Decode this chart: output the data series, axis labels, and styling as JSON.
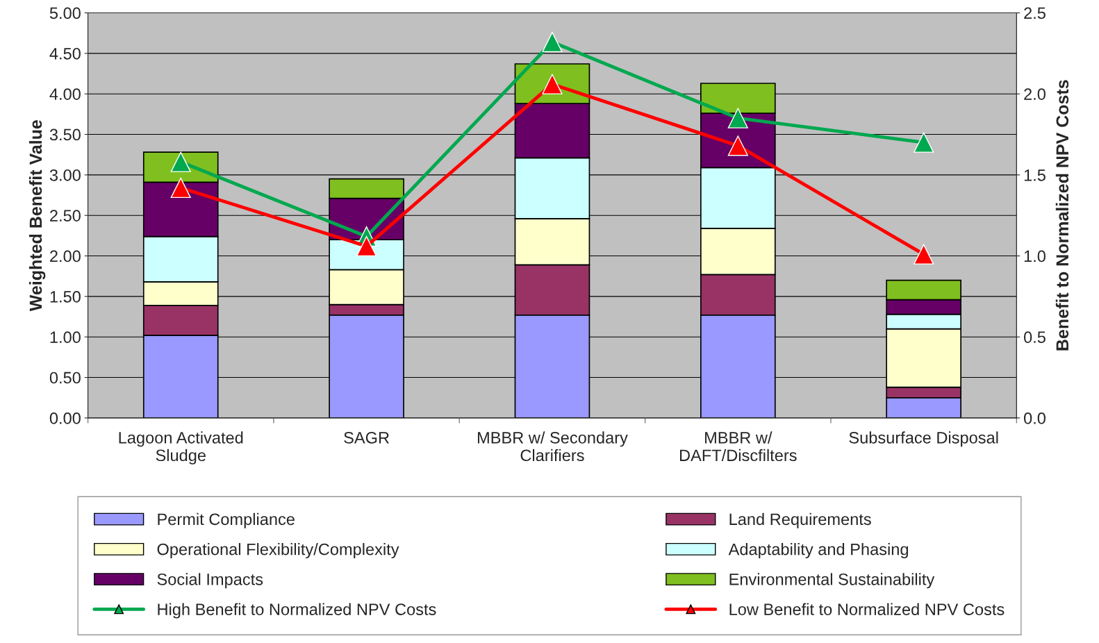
{
  "chart_data": {
    "type": "bar",
    "stacked": true,
    "ylabel": "Weighted Benefit Value",
    "y2label": "Benefit to Normalized NPV Costs",
    "categories": [
      "Lagoon Activated\nSludge",
      "SAGR",
      "MBBR w/ Secondary\nClarifiers",
      "MBBR w/\nDAFT/Discfilters",
      "Subsurface Disposal"
    ],
    "series": [
      {
        "name": "Permit Compliance",
        "color": "#9999ff",
        "values": [
          1.02,
          1.27,
          1.27,
          1.27,
          0.25
        ]
      },
      {
        "name": "Land Requirements",
        "color": "#993366",
        "values": [
          0.37,
          0.13,
          0.62,
          0.5,
          0.13
        ]
      },
      {
        "name": "Operational Flexibility/Complexity",
        "color": "#ffffcc",
        "values": [
          0.29,
          0.43,
          0.57,
          0.57,
          0.72
        ]
      },
      {
        "name": "Adaptability and Phasing",
        "color": "#ccffff",
        "values": [
          0.56,
          0.37,
          0.75,
          0.75,
          0.18
        ]
      },
      {
        "name": "Social Impacts",
        "color": "#660066",
        "values": [
          0.67,
          0.51,
          0.67,
          0.67,
          0.18
        ]
      },
      {
        "name": "Environmental Sustainability",
        "color": "#7fbf1f",
        "values": [
          0.37,
          0.24,
          0.49,
          0.37,
          0.24
        ]
      },
      {
        "name": "High Benefit to Normalized NPV Costs",
        "type": "line",
        "axis": "y2",
        "marker": "triangle",
        "color": "#00a84f",
        "values": [
          1.58,
          1.12,
          2.32,
          1.85,
          1.7
        ]
      },
      {
        "name": "Low Benefit to Normalized NPV Costs",
        "type": "line",
        "axis": "y2",
        "marker": "triangle",
        "color": "#ff0000",
        "values": [
          1.42,
          1.06,
          2.06,
          1.68,
          1.01
        ]
      }
    ],
    "ylim": [
      0,
      5
    ],
    "yticks": [
      {
        "value": 0,
        "label": "0.00"
      },
      {
        "value": 0.5,
        "label": "0.50"
      },
      {
        "value": 1,
        "label": "1.00"
      },
      {
        "value": 1.5,
        "label": "1.50"
      },
      {
        "value": 2,
        "label": "2.00"
      },
      {
        "value": 2.5,
        "label": "2.50"
      },
      {
        "value": 3,
        "label": "3.00"
      },
      {
        "value": 3.5,
        "label": "3.50"
      },
      {
        "value": 4,
        "label": "4.00"
      },
      {
        "value": 4.5,
        "label": "4.50"
      },
      {
        "value": 5,
        "label": "5.00"
      }
    ],
    "y2lim": [
      0,
      2.5
    ],
    "y2ticks": [
      {
        "value": 0,
        "label": "0.0"
      },
      0.5,
      {
        "value": 1,
        "label": "1.0"
      },
      1.5,
      {
        "value": 2,
        "label": "2.0"
      },
      2.5
    ],
    "grid": "y",
    "legend": "bottom"
  }
}
